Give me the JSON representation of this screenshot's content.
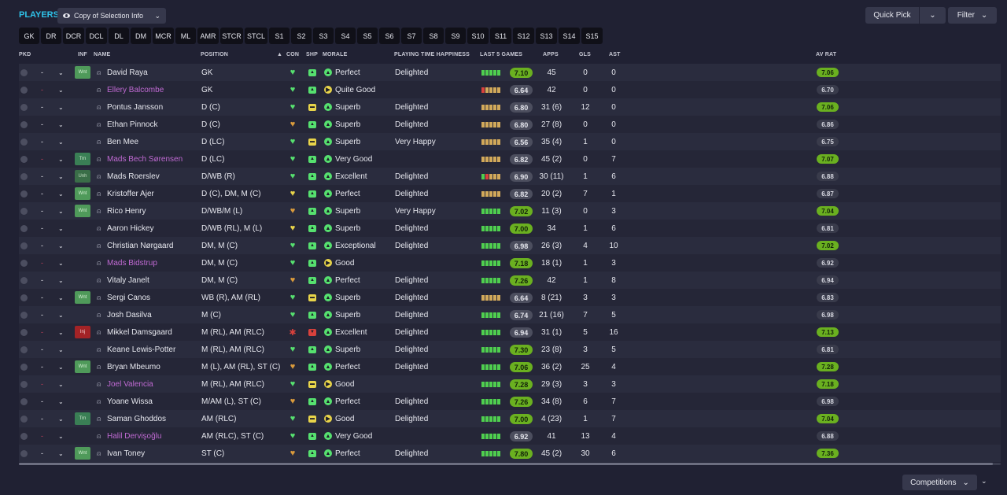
{
  "header": {
    "title": "PLAYERS",
    "view_label": "Copy of Selection Info",
    "quick_pick": "Quick Pick",
    "filter": "Filter"
  },
  "chips": [
    "GK",
    "DR",
    "DCR",
    "DCL",
    "DL",
    "DM",
    "MCR",
    "ML",
    "AMR",
    "STCR",
    "STCL",
    "S1",
    "S2",
    "S3",
    "S4",
    "S5",
    "S6",
    "S7",
    "S8",
    "S9",
    "S10",
    "S11",
    "S12",
    "S13",
    "S14",
    "S15"
  ],
  "columns": {
    "pkd": "PKD",
    "inf": "INF",
    "name": "NAME",
    "position": "POSITION",
    "sort": "▲",
    "con": "CON",
    "shp": "SHP",
    "morale": "MORALE",
    "pth": "PLAYING TIME HAPPINESS",
    "form": "LAST 5 GAMES",
    "apps": "APPS",
    "gls": "GLS",
    "ast": "AST",
    "avrat": "AV RAT"
  },
  "players": [
    {
      "inf": "Wnt",
      "name": "David Raya",
      "loan": false,
      "pos": "GK",
      "con": "green",
      "shp": "up",
      "morale": "Perfect",
      "morale_c": "green",
      "pth": "Delighted",
      "form": "ggggg",
      "rating": "7.10",
      "rating_hi": true,
      "apps": "45",
      "gls": "0",
      "ast": "0",
      "av": "7.06",
      "av_hi": true,
      "red": false
    },
    {
      "inf": "",
      "name": "Ellery Balcombe",
      "loan": true,
      "pos": "GK",
      "con": "green",
      "shp": "up",
      "morale": "Quite Good",
      "morale_c": "yellow",
      "pth": "",
      "form": "roooo",
      "rating": "6.64",
      "rating_hi": false,
      "apps": "42",
      "gls": "0",
      "ast": "0",
      "av": "6.70",
      "av_hi": false,
      "red": true
    },
    {
      "inf": "",
      "name": "Pontus Jansson",
      "loan": false,
      "pos": "D (C)",
      "con": "green",
      "shp": "mid",
      "morale": "Superb",
      "morale_c": "green",
      "pth": "Delighted",
      "form": "ooooo",
      "rating": "6.80",
      "rating_hi": false,
      "apps": "31 (6)",
      "gls": "12",
      "ast": "0",
      "av": "7.06",
      "av_hi": true,
      "red": false
    },
    {
      "inf": "",
      "name": "Ethan Pinnock",
      "loan": false,
      "pos": "D (C)",
      "con": "orange",
      "shp": "up",
      "morale": "Superb",
      "morale_c": "green",
      "pth": "Delighted",
      "form": "ooooo",
      "rating": "6.80",
      "rating_hi": false,
      "apps": "27 (8)",
      "gls": "0",
      "ast": "0",
      "av": "6.86",
      "av_hi": false,
      "red": false
    },
    {
      "inf": "",
      "name": "Ben Mee",
      "loan": false,
      "pos": "D (LC)",
      "con": "green",
      "shp": "mid",
      "morale": "Superb",
      "morale_c": "green",
      "pth": "Very Happy",
      "form": "ooooo",
      "rating": "6.56",
      "rating_hi": false,
      "apps": "35 (4)",
      "gls": "1",
      "ast": "0",
      "av": "6.75",
      "av_hi": false,
      "red": false
    },
    {
      "inf": "Trn",
      "name": "Mads Bech Sørensen",
      "loan": true,
      "pos": "D (LC)",
      "con": "green",
      "shp": "up",
      "morale": "Very Good",
      "morale_c": "green",
      "pth": "",
      "form": "ooooo",
      "rating": "6.82",
      "rating_hi": false,
      "apps": "45 (2)",
      "gls": "0",
      "ast": "7",
      "av": "7.07",
      "av_hi": true,
      "red": true
    },
    {
      "inf": "Unh",
      "name": "Mads Roerslev",
      "loan": false,
      "pos": "D/WB (R)",
      "con": "green",
      "shp": "up",
      "morale": "Excellent",
      "morale_c": "green",
      "pth": "Delighted",
      "form": "grooo",
      "rating": "6.90",
      "rating_hi": false,
      "apps": "30 (11)",
      "gls": "1",
      "ast": "6",
      "av": "6.88",
      "av_hi": false,
      "red": false
    },
    {
      "inf": "Wnt",
      "name": "Kristoffer Ajer",
      "loan": false,
      "pos": "D (C), DM, M (C)",
      "con": "yellow",
      "shp": "up",
      "morale": "Perfect",
      "morale_c": "green",
      "pth": "Delighted",
      "form": "ooooo",
      "rating": "6.82",
      "rating_hi": false,
      "apps": "20 (2)",
      "gls": "7",
      "ast": "1",
      "av": "6.87",
      "av_hi": false,
      "red": false
    },
    {
      "inf": "Wnt",
      "name": "Rico Henry",
      "loan": false,
      "pos": "D/WB/M (L)",
      "con": "orange",
      "shp": "up",
      "morale": "Superb",
      "morale_c": "green",
      "pth": "Very Happy",
      "form": "ggggg",
      "rating": "7.02",
      "rating_hi": true,
      "apps": "11 (3)",
      "gls": "0",
      "ast": "3",
      "av": "7.04",
      "av_hi": true,
      "red": false
    },
    {
      "inf": "",
      "name": "Aaron Hickey",
      "loan": false,
      "pos": "D/WB (RL), M (L)",
      "con": "yellow",
      "shp": "up",
      "morale": "Superb",
      "morale_c": "green",
      "pth": "Delighted",
      "form": "ggggg",
      "rating": "7.00",
      "rating_hi": true,
      "apps": "34",
      "gls": "1",
      "ast": "6",
      "av": "6.81",
      "av_hi": false,
      "red": false
    },
    {
      "inf": "",
      "name": "Christian Nørgaard",
      "loan": false,
      "pos": "DM, M (C)",
      "con": "green",
      "shp": "up",
      "morale": "Exceptional",
      "morale_c": "green",
      "pth": "Delighted",
      "form": "ggggg",
      "rating": "6.98",
      "rating_hi": false,
      "apps": "26 (3)",
      "gls": "4",
      "ast": "10",
      "av": "7.02",
      "av_hi": true,
      "red": false
    },
    {
      "inf": "",
      "name": "Mads Bidstrup",
      "loan": true,
      "pos": "DM, M (C)",
      "con": "green",
      "shp": "up",
      "morale": "Good",
      "morale_c": "yellow",
      "pth": "",
      "form": "ggggg",
      "rating": "7.18",
      "rating_hi": true,
      "apps": "18 (1)",
      "gls": "1",
      "ast": "3",
      "av": "6.92",
      "av_hi": false,
      "red": true
    },
    {
      "inf": "",
      "name": "Vitaly Janelt",
      "loan": false,
      "pos": "DM, M (C)",
      "con": "orange",
      "shp": "up",
      "morale": "Perfect",
      "morale_c": "green",
      "pth": "Delighted",
      "form": "ggggg",
      "rating": "7.26",
      "rating_hi": true,
      "apps": "42",
      "gls": "1",
      "ast": "8",
      "av": "6.94",
      "av_hi": false,
      "red": false
    },
    {
      "inf": "Wnt",
      "name": "Sergi Canos",
      "loan": false,
      "pos": "WB (R), AM (RL)",
      "con": "green",
      "shp": "mid",
      "morale": "Superb",
      "morale_c": "green",
      "pth": "Delighted",
      "form": "ooooo",
      "rating": "6.64",
      "rating_hi": false,
      "apps": "8 (21)",
      "gls": "3",
      "ast": "3",
      "av": "6.83",
      "av_hi": false,
      "red": false
    },
    {
      "inf": "",
      "name": "Josh Dasilva",
      "loan": false,
      "pos": "M (C)",
      "con": "green",
      "shp": "up",
      "morale": "Superb",
      "morale_c": "green",
      "pth": "Delighted",
      "form": "ggggg",
      "rating": "6.74",
      "rating_hi": false,
      "apps": "21 (16)",
      "gls": "7",
      "ast": "5",
      "av": "6.98",
      "av_hi": false,
      "red": false
    },
    {
      "inf": "Inj",
      "name": "Mikkel Damsgaard",
      "loan": false,
      "pos": "M (RL), AM (RLC)",
      "con": "red",
      "shp": "down",
      "morale": "Excellent",
      "morale_c": "green",
      "pth": "Delighted",
      "form": "ggggg",
      "rating": "6.94",
      "rating_hi": false,
      "apps": "31 (1)",
      "gls": "5",
      "ast": "16",
      "av": "7.13",
      "av_hi": true,
      "red": true
    },
    {
      "inf": "",
      "name": "Keane Lewis-Potter",
      "loan": false,
      "pos": "M (RL), AM (RLC)",
      "con": "green",
      "shp": "up",
      "morale": "Superb",
      "morale_c": "green",
      "pth": "Delighted",
      "form": "ggggg",
      "rating": "7.30",
      "rating_hi": true,
      "apps": "23 (8)",
      "gls": "3",
      "ast": "5",
      "av": "6.81",
      "av_hi": false,
      "red": false
    },
    {
      "inf": "Wnt",
      "name": "Bryan Mbeumo",
      "loan": false,
      "pos": "M (L), AM (RL), ST (C)",
      "con": "orange",
      "shp": "up",
      "morale": "Perfect",
      "morale_c": "green",
      "pth": "Delighted",
      "form": "ggggg",
      "rating": "7.06",
      "rating_hi": true,
      "apps": "36 (2)",
      "gls": "25",
      "ast": "4",
      "av": "7.28",
      "av_hi": true,
      "red": false
    },
    {
      "inf": "",
      "name": "Joel Valencia",
      "loan": true,
      "pos": "M (RL), AM (RLC)",
      "con": "green",
      "shp": "mid",
      "morale": "Good",
      "morale_c": "yellow",
      "pth": "",
      "form": "ggggg",
      "rating": "7.28",
      "rating_hi": true,
      "apps": "29 (3)",
      "gls": "3",
      "ast": "3",
      "av": "7.18",
      "av_hi": true,
      "red": true
    },
    {
      "inf": "",
      "name": "Yoane Wissa",
      "loan": false,
      "pos": "M/AM (L), ST (C)",
      "con": "orange",
      "shp": "up",
      "morale": "Perfect",
      "morale_c": "green",
      "pth": "Delighted",
      "form": "ggggg",
      "rating": "7.26",
      "rating_hi": true,
      "apps": "34 (8)",
      "gls": "6",
      "ast": "7",
      "av": "6.98",
      "av_hi": false,
      "red": false
    },
    {
      "inf": "Trn",
      "name": "Saman Ghoddos",
      "loan": false,
      "pos": "AM (RLC)",
      "con": "green",
      "shp": "mid",
      "morale": "Good",
      "morale_c": "yellow",
      "pth": "Delighted",
      "form": "ggggg",
      "rating": "7.00",
      "rating_hi": true,
      "apps": "4 (23)",
      "gls": "1",
      "ast": "7",
      "av": "7.04",
      "av_hi": true,
      "red": false
    },
    {
      "inf": "",
      "name": "Halil Dervişoğlu",
      "loan": true,
      "pos": "AM (RLC), ST (C)",
      "con": "green",
      "shp": "up",
      "morale": "Very Good",
      "morale_c": "green",
      "pth": "",
      "form": "ggggg",
      "rating": "6.92",
      "rating_hi": false,
      "apps": "41",
      "gls": "13",
      "ast": "4",
      "av": "6.88",
      "av_hi": false,
      "red": true
    },
    {
      "inf": "Wnt",
      "name": "Ivan Toney",
      "loan": false,
      "pos": "ST (C)",
      "con": "orange",
      "shp": "up",
      "morale": "Perfect",
      "morale_c": "green",
      "pth": "Delighted",
      "form": "ggggg",
      "rating": "7.80",
      "rating_hi": true,
      "apps": "45 (2)",
      "gls": "30",
      "ast": "6",
      "av": "7.36",
      "av_hi": true,
      "red": false
    }
  ],
  "footer": {
    "competitions": "Competitions"
  },
  "colors": {
    "accent": "#2fc2e8",
    "green": "#56e06f",
    "yellow": "#e8d44a",
    "orange": "#d99a3c",
    "red": "#d8413c",
    "highlight": "#6ab020"
  }
}
